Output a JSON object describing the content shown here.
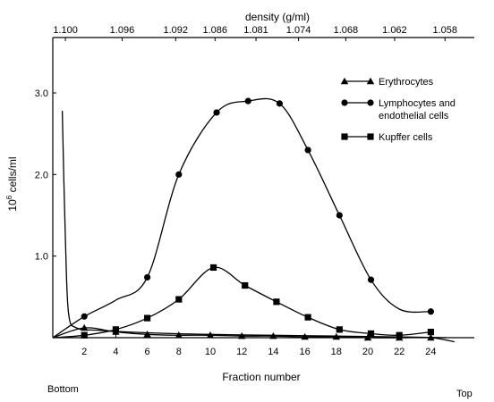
{
  "chart_data": {
    "type": "line",
    "title": "",
    "xlabel": "Fraction number",
    "ylabel": "10^6 cells/ml",
    "ylabel_base": "10",
    "ylabel_exp": "6",
    "ylabel_rest": " cells/ml",
    "xlim": [
      0,
      25
    ],
    "ylim": [
      0,
      3.5
    ],
    "x_ticks": [
      2,
      4,
      6,
      8,
      10,
      12,
      14,
      16,
      18,
      20,
      22,
      24
    ],
    "y_ticks": [
      1.0,
      2.0,
      3.0
    ],
    "y_tick_labels": [
      "1.0",
      "2.0",
      "3.0"
    ],
    "top_axis": {
      "label": "density (g/ml)",
      "ticks": [
        {
          "x": 0.8,
          "label": "1.100"
        },
        {
          "x": 4.4,
          "label": "1.096"
        },
        {
          "x": 7.8,
          "label": "1.092"
        },
        {
          "x": 10.3,
          "label": "1.086"
        },
        {
          "x": 12.9,
          "label": "1.081"
        },
        {
          "x": 15.6,
          "label": "1.074"
        },
        {
          "x": 18.6,
          "label": "1.068"
        },
        {
          "x": 21.7,
          "label": "1.062"
        },
        {
          "x": 24.9,
          "label": "1.058"
        }
      ]
    },
    "bottom_left_label": "Bottom",
    "bottom_right_label": "Top",
    "legend_position": "top-right",
    "grid": false,
    "series": [
      {
        "name": "Erythrocytes",
        "marker": "triangle",
        "points": [
          [
            2,
            0.12
          ],
          [
            4,
            0.07
          ],
          [
            6,
            0.04
          ],
          [
            8,
            0.03
          ],
          [
            10,
            0.03
          ],
          [
            12,
            0.02
          ],
          [
            14,
            0.02
          ],
          [
            16,
            0.01
          ],
          [
            18,
            0.01
          ],
          [
            20,
            0.0
          ],
          [
            22,
            0.0
          ],
          [
            24,
            0.0
          ]
        ],
        "curve": [
          [
            0,
            0.0
          ],
          [
            2,
            0.12
          ],
          [
            4,
            0.07
          ],
          [
            6,
            0.04
          ],
          [
            8,
            0.03
          ],
          [
            10,
            0.03
          ],
          [
            12,
            0.02
          ],
          [
            14,
            0.02
          ],
          [
            16,
            0.01
          ],
          [
            18,
            0.01
          ],
          [
            20,
            0.0
          ],
          [
            22,
            0.0
          ],
          [
            24,
            0.0
          ],
          [
            25.5,
            -0.05
          ]
        ]
      },
      {
        "name": "Lymphocytes and endothelial cells",
        "name_lines": [
          "Lymphocytes and",
          "endothelial cells"
        ],
        "marker": "circle",
        "points": [
          [
            2,
            0.26
          ],
          [
            6,
            0.74
          ],
          [
            8,
            2.0
          ],
          [
            10.4,
            2.76
          ],
          [
            12.4,
            2.9
          ],
          [
            14.4,
            2.87
          ],
          [
            16.2,
            2.3
          ],
          [
            18.2,
            1.5
          ],
          [
            20.2,
            0.71
          ],
          [
            24,
            0.32
          ]
        ],
        "curve": [
          [
            0,
            0.0
          ],
          [
            2,
            0.26
          ],
          [
            4,
            0.46
          ],
          [
            6,
            0.74
          ],
          [
            8,
            2.0
          ],
          [
            10.4,
            2.76
          ],
          [
            12.4,
            2.9
          ],
          [
            14.4,
            2.87
          ],
          [
            16.2,
            2.3
          ],
          [
            18.2,
            1.5
          ],
          [
            20.2,
            0.71
          ],
          [
            22,
            0.35
          ],
          [
            24,
            0.32
          ]
        ]
      },
      {
        "name": "Kupffer cells",
        "marker": "square",
        "points": [
          [
            2,
            0.03
          ],
          [
            4,
            0.1
          ],
          [
            6,
            0.24
          ],
          [
            8,
            0.47
          ],
          [
            10.2,
            0.86
          ],
          [
            12.2,
            0.64
          ],
          [
            14.2,
            0.44
          ],
          [
            16.2,
            0.25
          ],
          [
            18.2,
            0.1
          ],
          [
            20.2,
            0.05
          ],
          [
            22,
            0.03
          ],
          [
            24,
            0.07
          ]
        ],
        "curve": [
          [
            0,
            0.0
          ],
          [
            2,
            0.03
          ],
          [
            4,
            0.1
          ],
          [
            6,
            0.24
          ],
          [
            8,
            0.47
          ],
          [
            10.2,
            0.86
          ],
          [
            12.2,
            0.64
          ],
          [
            14.2,
            0.44
          ],
          [
            16.2,
            0.25
          ],
          [
            18.2,
            0.1
          ],
          [
            20.2,
            0.05
          ],
          [
            22,
            0.03
          ],
          [
            24,
            0.07
          ]
        ]
      },
      {
        "name": "",
        "marker": "none",
        "curve": [
          [
            0.6,
            2.78
          ],
          [
            0.8,
            1.2
          ],
          [
            1.0,
            0.3
          ],
          [
            1.5,
            0.12
          ],
          [
            3,
            0.09
          ],
          [
            6,
            0.06
          ],
          [
            10,
            0.04
          ],
          [
            14,
            0.03
          ],
          [
            18,
            0.02
          ],
          [
            22,
            0.01
          ],
          [
            25,
            0.0
          ]
        ]
      }
    ]
  }
}
